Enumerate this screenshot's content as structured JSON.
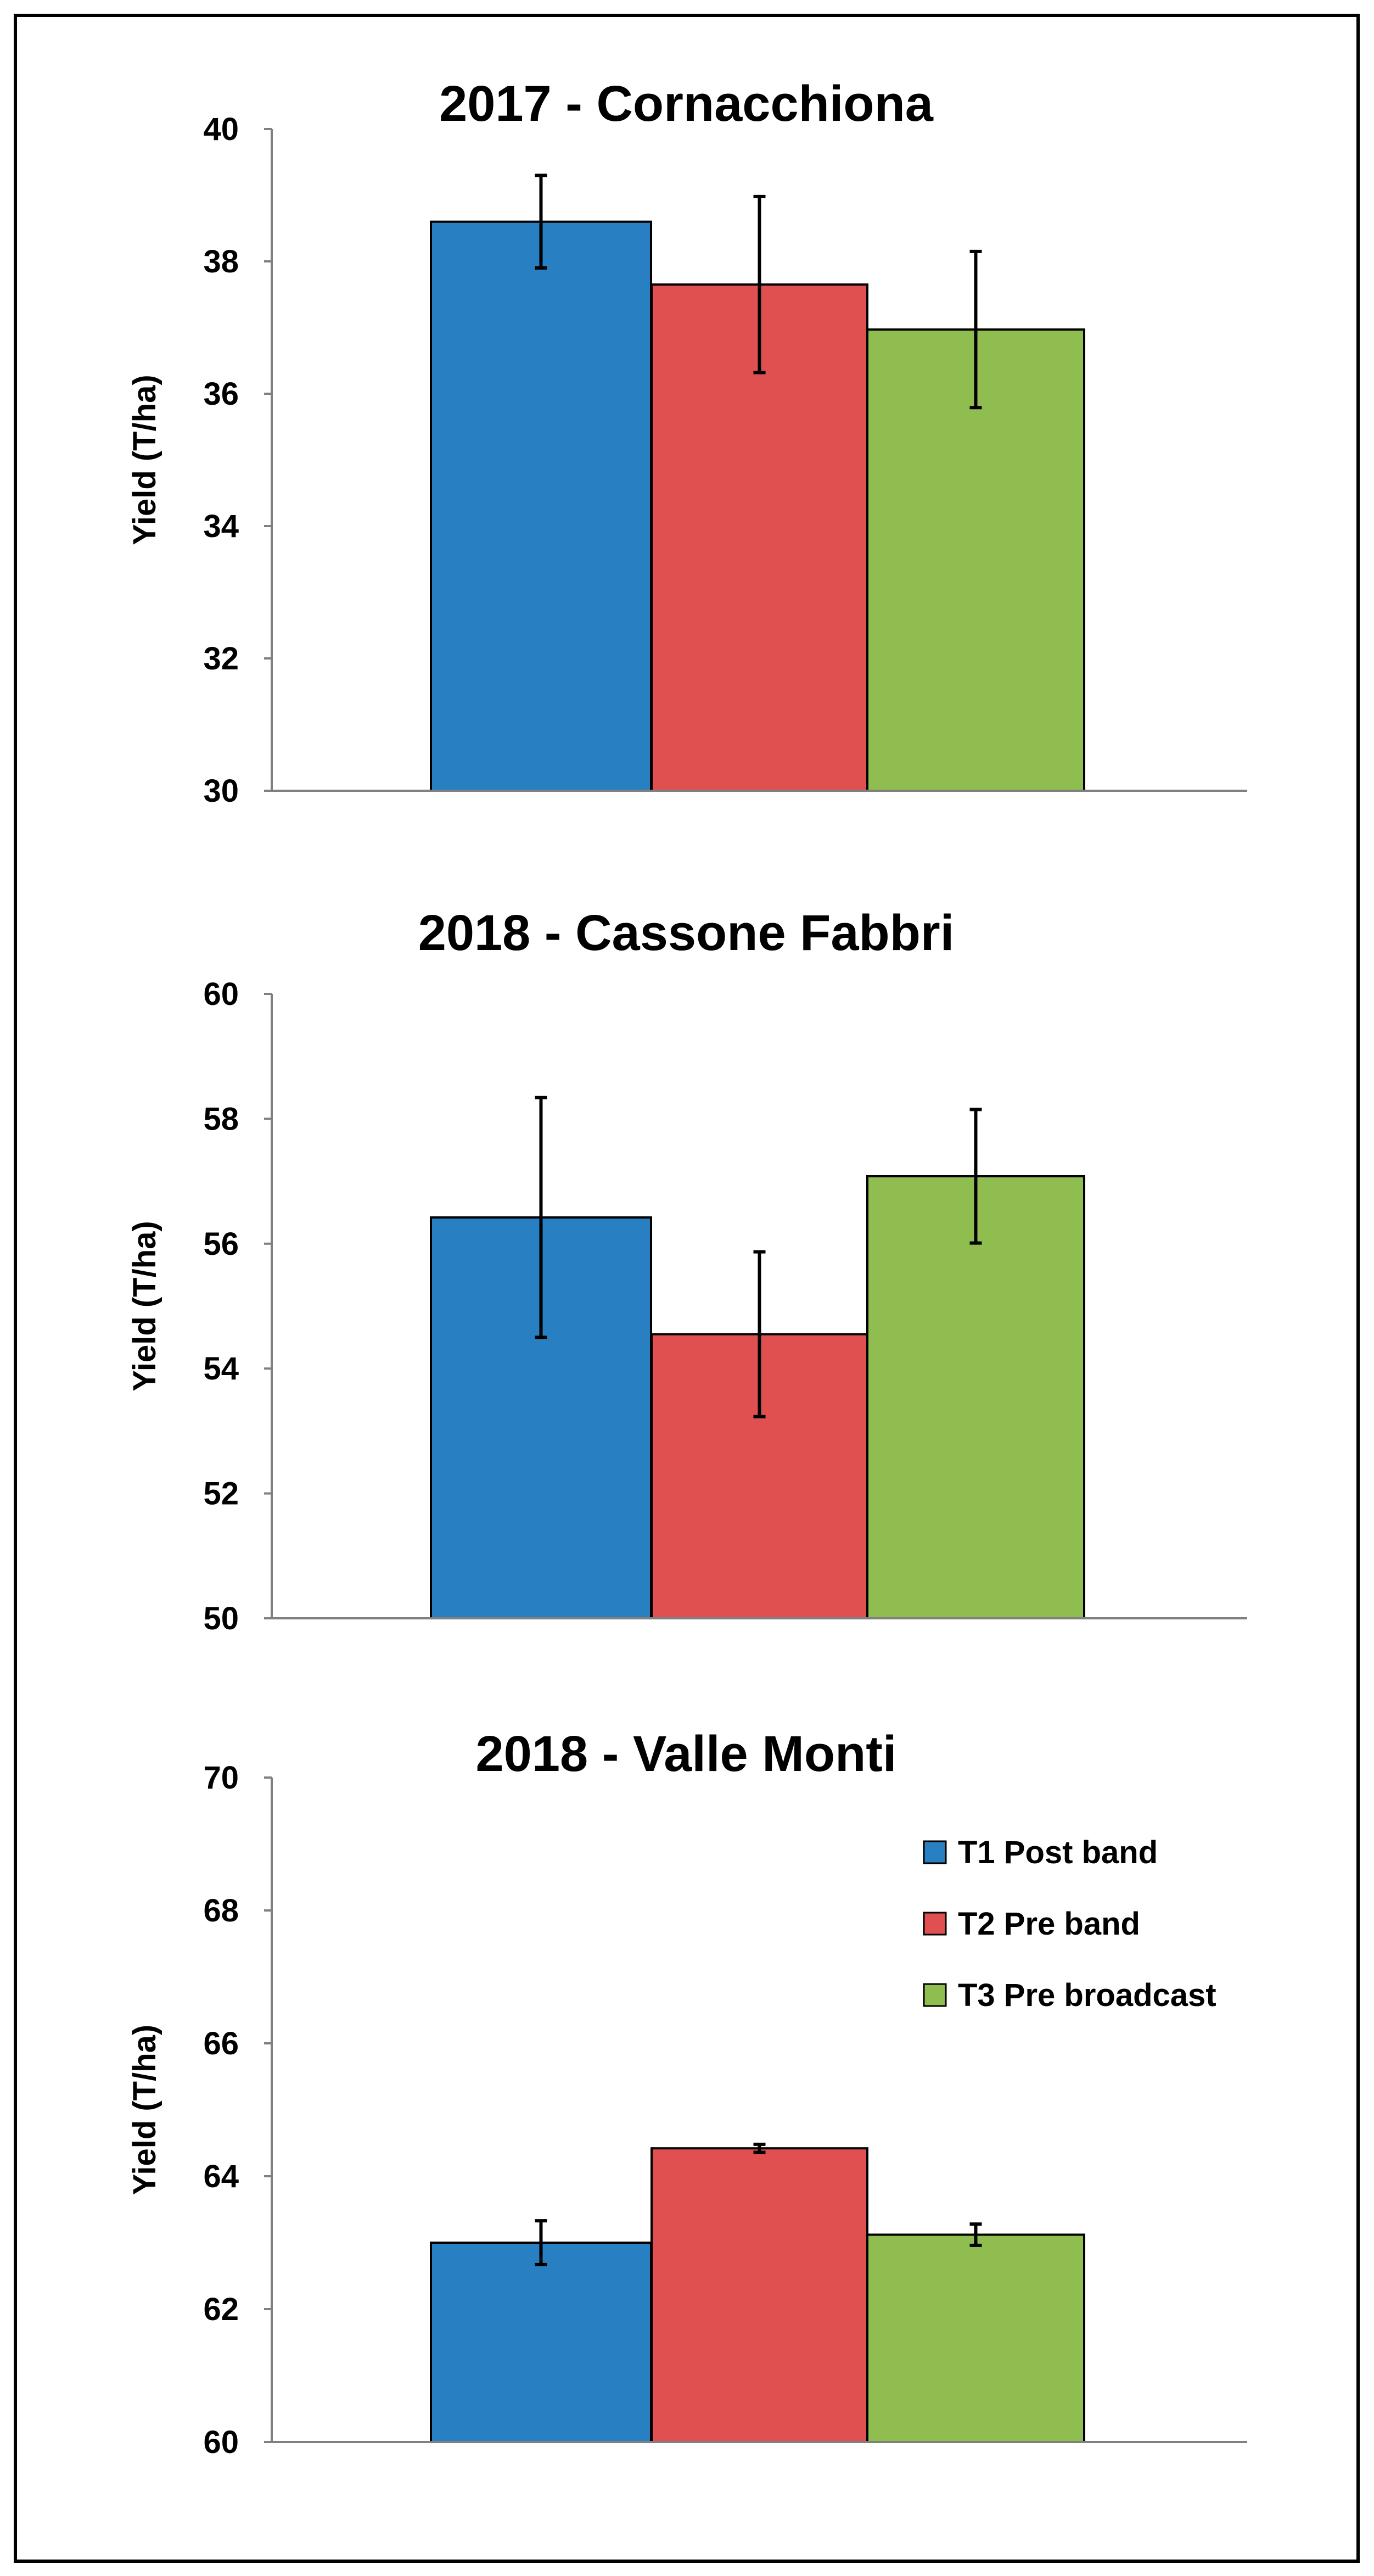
{
  "colors": {
    "T1": "#2880c2",
    "T2": "#e05050",
    "T3": "#8fbd50",
    "frame": "#000000",
    "axis": "#808080"
  },
  "legend": {
    "items": [
      {
        "key": "T1",
        "label": "T1 Post band"
      },
      {
        "key": "T2",
        "label": "T2 Pre band"
      },
      {
        "key": "T3",
        "label": "T3 Pre broadcast"
      }
    ]
  },
  "chart_data": [
    {
      "type": "bar",
      "title": "2017 - Cornacchiona",
      "ylabel": "Yield (T/ha)",
      "xlabel": "",
      "ylim": [
        30,
        40
      ],
      "yticks": [
        "30",
        "32",
        "34",
        "36",
        "38",
        "40"
      ],
      "series": [
        {
          "name": "T1 Post band",
          "value": 38.6,
          "error": 0.7
        },
        {
          "name": "T2 Pre band",
          "value": 37.65,
          "error": 1.33
        },
        {
          "name": "T3 Pre broadcast",
          "value": 36.97,
          "error": 1.18
        }
      ]
    },
    {
      "type": "bar",
      "title": "2018 - Cassone Fabbri",
      "ylabel": "Yield (T/ha)",
      "xlabel": "",
      "ylim": [
        50,
        60
      ],
      "yticks": [
        "50",
        "52",
        "54",
        "56",
        "58",
        "60"
      ],
      "series": [
        {
          "name": "T1 Post band",
          "value": 56.42,
          "error": 1.92
        },
        {
          "name": "T2 Pre band",
          "value": 54.55,
          "error": 1.32
        },
        {
          "name": "T3 Pre broadcast",
          "value": 57.08,
          "error": 1.07
        }
      ]
    },
    {
      "type": "bar",
      "title": "2018 - Valle Monti",
      "ylabel": "Yield (T/ha)",
      "xlabel": "",
      "ylim": [
        60,
        70
      ],
      "yticks": [
        "60",
        "62",
        "64",
        "66",
        "68",
        "70"
      ],
      "legend": "top-right",
      "series": [
        {
          "name": "T1 Post band",
          "value": 63.0,
          "error": 0.33
        },
        {
          "name": "T2 Pre band",
          "value": 64.42,
          "error": 0.06
        },
        {
          "name": "T3 Pre broadcast",
          "value": 63.12,
          "error": 0.16
        }
      ]
    }
  ]
}
